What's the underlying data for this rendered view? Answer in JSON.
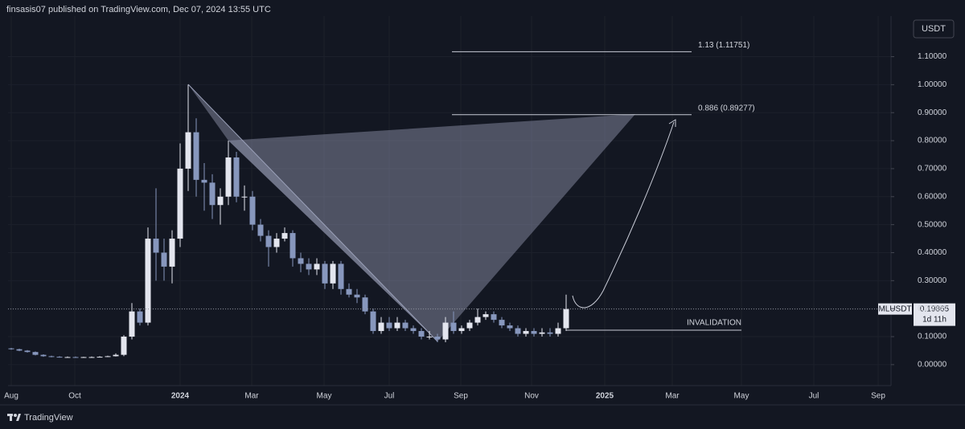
{
  "header": "finsasis07 published on TradingView.com, Dec 07, 2024 13:55 UTC",
  "footer": "TradingView",
  "chart_data": {
    "type": "candlestick",
    "currency": "USDT",
    "symbol": "MLUSDT",
    "last_price": 0.19865,
    "countdown": "1d 11h",
    "invalidation_label": "INVALIDATION",
    "up_color": "#e3e5ee",
    "down_color": "#8797bd",
    "grid": true,
    "levels": [
      {
        "label": "1.13 (1.11751)",
        "value": 1.11751
      },
      {
        "label": "0.886 (0.89277)",
        "value": 0.89277
      }
    ],
    "xlim": [
      -0.4,
      109.4
    ],
    "xticks": [
      {
        "value": 0,
        "label": "Aug"
      },
      {
        "value": 7.9,
        "label": "Oct"
      },
      {
        "value": 21,
        "label": "2024"
      },
      {
        "value": 29.9,
        "label": "Mar"
      },
      {
        "value": 38.9,
        "label": "May"
      },
      {
        "value": 47,
        "label": "Jul"
      },
      {
        "value": 55.9,
        "label": "Sep"
      },
      {
        "value": 64.7,
        "label": "Nov"
      },
      {
        "value": 73.8,
        "label": "2025"
      },
      {
        "value": 82.2,
        "label": "Mar"
      },
      {
        "value": 90.8,
        "label": "May"
      },
      {
        "value": 99.8,
        "label": "Jul"
      },
      {
        "value": 107.8,
        "label": "Sep"
      }
    ],
    "ylim": [
      -0.075,
      1.245
    ],
    "yticks": [
      {
        "value": 0,
        "label": "0.00000"
      },
      {
        "value": 0.1,
        "label": "0.10000"
      },
      {
        "value": 0.2,
        "label": "0.20000"
      },
      {
        "value": 0.3,
        "label": "0.30000"
      },
      {
        "value": 0.4,
        "label": "0.40000"
      },
      {
        "value": 0.5,
        "label": "0.50000"
      },
      {
        "value": 0.6,
        "label": "0.60000"
      },
      {
        "value": 0.7,
        "label": "0.70000"
      },
      {
        "value": 0.8,
        "label": "0.80000"
      },
      {
        "value": 0.9,
        "label": "0.90000"
      },
      {
        "value": 1,
        "label": "1.00000"
      },
      {
        "value": 1.1,
        "label": "1.10000"
      }
    ],
    "open": [
      0.058,
      0.055,
      0.05,
      0.045,
      0.035,
      0.03,
      0.028,
      0.027,
      0.027,
      0.026,
      0.027,
      0.027,
      0.028,
      0.03,
      0.035,
      0.1,
      0.19,
      0.15,
      0.45,
      0.4,
      0.35,
      0.45,
      0.7,
      0.83,
      0.66,
      0.65,
      0.57,
      0.6,
      0.74,
      0.6,
      0.6,
      0.5,
      0.46,
      0.42,
      0.45,
      0.47,
      0.38,
      0.36,
      0.34,
      0.36,
      0.29,
      0.36,
      0.27,
      0.25,
      0.24,
      0.19,
      0.12,
      0.15,
      0.13,
      0.15,
      0.13,
      0.12,
      0.1,
      0.1,
      0.09,
      0.15,
      0.12,
      0.13,
      0.15,
      0.17,
      0.18,
      0.16,
      0.14,
      0.13,
      0.11,
      0.12,
      0.11,
      0.115,
      0.11,
      0.13
    ],
    "high": [
      0.06,
      0.057,
      0.052,
      0.047,
      0.037,
      0.032,
      0.03,
      0.029,
      0.029,
      0.028,
      0.029,
      0.03,
      0.032,
      0.04,
      0.105,
      0.22,
      0.2,
      0.49,
      0.63,
      0.45,
      0.48,
      0.79,
      1.0,
      0.88,
      0.72,
      0.68,
      0.63,
      0.8,
      0.76,
      0.64,
      0.62,
      0.52,
      0.48,
      0.47,
      0.49,
      0.48,
      0.4,
      0.38,
      0.38,
      0.37,
      0.37,
      0.37,
      0.29,
      0.27,
      0.25,
      0.2,
      0.17,
      0.17,
      0.17,
      0.16,
      0.14,
      0.13,
      0.12,
      0.11,
      0.17,
      0.19,
      0.14,
      0.16,
      0.2,
      0.19,
      0.19,
      0.17,
      0.15,
      0.14,
      0.13,
      0.13,
      0.13,
      0.13,
      0.15,
      0.25
    ],
    "low": [
      0.053,
      0.048,
      0.043,
      0.033,
      0.028,
      0.026,
      0.025,
      0.025,
      0.024,
      0.024,
      0.025,
      0.026,
      0.027,
      0.029,
      0.03,
      0.09,
      0.14,
      0.14,
      0.3,
      0.3,
      0.29,
      0.42,
      0.62,
      0.6,
      0.55,
      0.52,
      0.5,
      0.57,
      0.58,
      0.55,
      0.48,
      0.44,
      0.35,
      0.4,
      0.44,
      0.35,
      0.33,
      0.32,
      0.32,
      0.27,
      0.27,
      0.25,
      0.24,
      0.22,
      0.18,
      0.11,
      0.11,
      0.12,
      0.12,
      0.12,
      0.11,
      0.09,
      0.09,
      0.08,
      0.08,
      0.11,
      0.11,
      0.12,
      0.14,
      0.16,
      0.15,
      0.13,
      0.12,
      0.1,
      0.1,
      0.1,
      0.1,
      0.1,
      0.1,
      0.12
    ],
    "close": [
      0.055,
      0.05,
      0.045,
      0.035,
      0.03,
      0.028,
      0.027,
      0.027,
      0.026,
      0.027,
      0.027,
      0.028,
      0.03,
      0.035,
      0.1,
      0.19,
      0.15,
      0.45,
      0.4,
      0.35,
      0.45,
      0.7,
      0.83,
      0.66,
      0.65,
      0.57,
      0.6,
      0.74,
      0.6,
      0.6,
      0.5,
      0.46,
      0.42,
      0.45,
      0.47,
      0.38,
      0.36,
      0.34,
      0.36,
      0.29,
      0.36,
      0.27,
      0.25,
      0.24,
      0.19,
      0.12,
      0.15,
      0.13,
      0.15,
      0.13,
      0.12,
      0.1,
      0.1,
      0.09,
      0.15,
      0.12,
      0.13,
      0.15,
      0.17,
      0.18,
      0.16,
      0.14,
      0.13,
      0.11,
      0.12,
      0.11,
      0.115,
      0.11,
      0.13,
      0.19865
    ]
  }
}
